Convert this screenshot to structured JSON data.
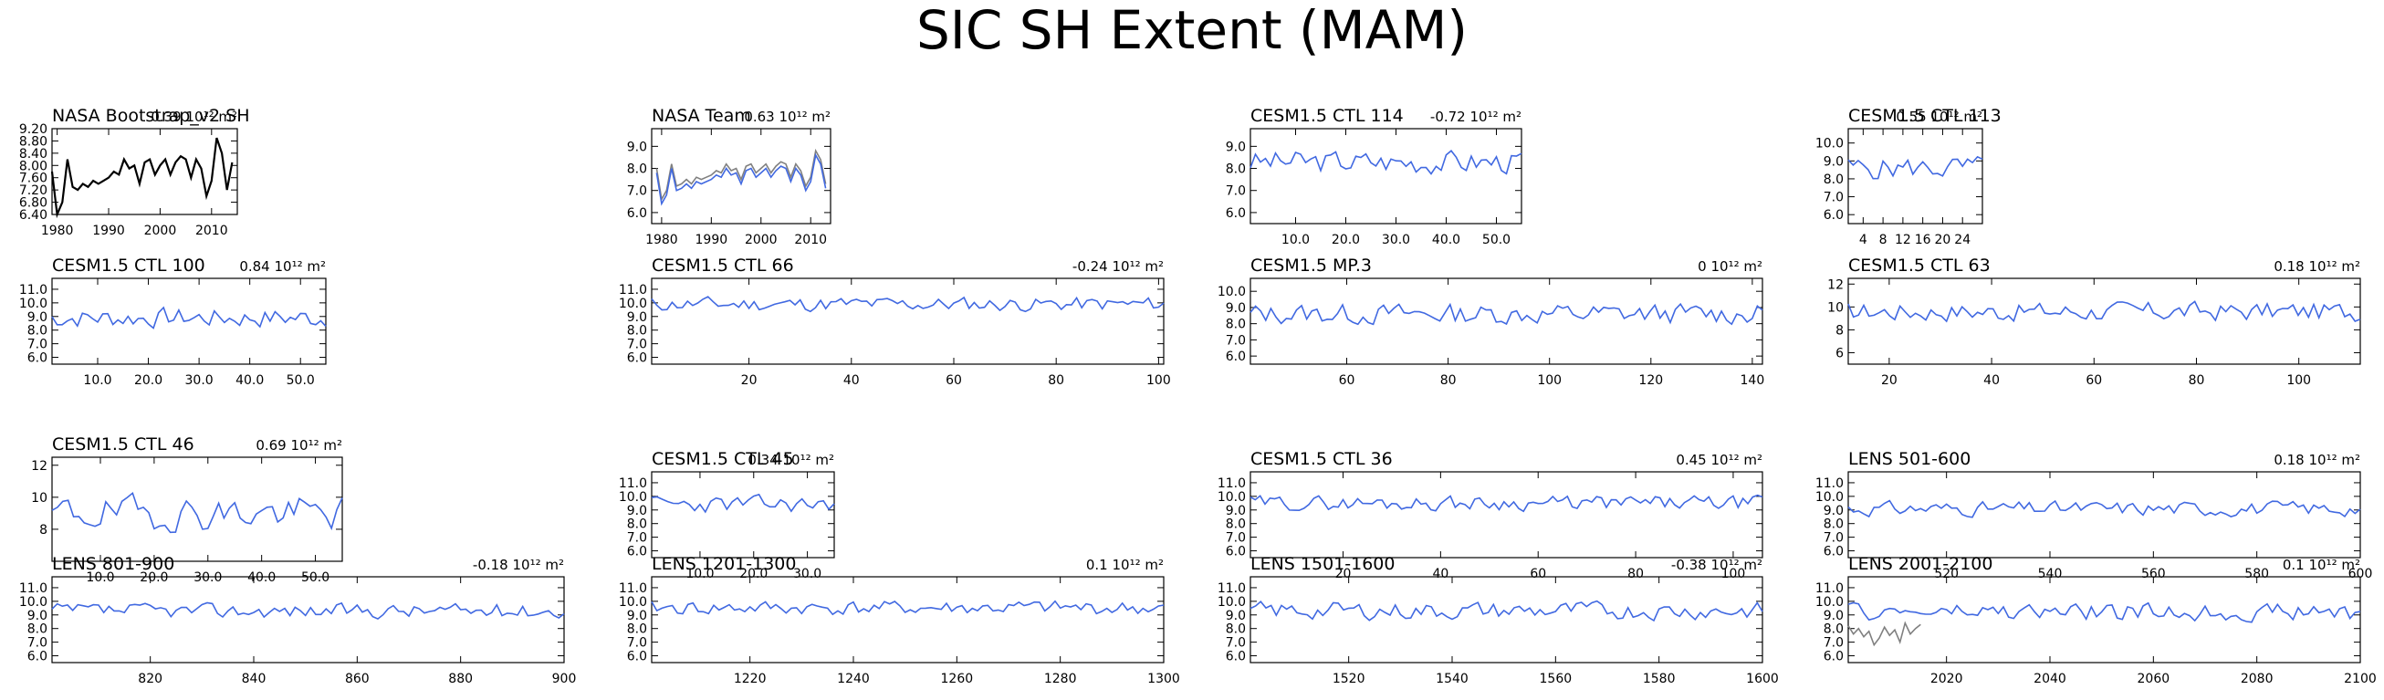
{
  "title": "SIC SH Extent (MAM)",
  "colors": {
    "model": "#4169e1",
    "obs": "#000000",
    "obs_secondary": "#808080",
    "axis": "#000000"
  },
  "chart_data": [
    {
      "type": "line",
      "title": "NASA Bootstrap_v2 SH",
      "trend": "0.39 10¹² m²",
      "xlim": [
        1979,
        2015
      ],
      "xticks": [
        1980,
        1990,
        2000,
        2010
      ],
      "xtick_labels": [
        "1980",
        "1990",
        "2000",
        "2010"
      ],
      "ylim": [
        6.4,
        9.2
      ],
      "yticks": [
        6.4,
        6.8,
        7.2,
        7.6,
        8.0,
        8.4,
        8.8,
        9.2
      ],
      "ytick_labels": [
        "6.40",
        "6.80",
        "7.20",
        "7.60",
        "8.00",
        "8.40",
        "8.80",
        "9.20"
      ],
      "series": [
        {
          "color": "#000000",
          "x": [
            1979,
            1980,
            1981,
            1982,
            1983,
            1984,
            1985,
            1986,
            1987,
            1988,
            1989,
            1990,
            1991,
            1992,
            1993,
            1994,
            1995,
            1996,
            1997,
            1998,
            1999,
            2000,
            2001,
            2002,
            2003,
            2004,
            2005,
            2006,
            2007,
            2008,
            2009,
            2010,
            2011,
            2012,
            2013,
            2014
          ],
          "y": [
            7.8,
            6.4,
            6.8,
            8.2,
            7.3,
            7.2,
            7.4,
            7.3,
            7.5,
            7.4,
            7.5,
            7.6,
            7.8,
            7.7,
            8.2,
            7.9,
            8.0,
            7.4,
            8.1,
            8.2,
            7.7,
            8.0,
            8.2,
            7.7,
            8.1,
            8.3,
            8.2,
            7.6,
            8.2,
            7.9,
            7.0,
            7.5,
            8.9,
            8.4,
            7.2,
            8.1
          ]
        }
      ]
    },
    {
      "type": "line",
      "title": "NASA Team",
      "trend": "0.63 10¹² m²",
      "xlim": [
        1978,
        2014
      ],
      "xticks": [
        1980,
        1990,
        2000,
        2010
      ],
      "xtick_labels": [
        "1980",
        "1990",
        "2000",
        "2010"
      ],
      "ylim": [
        5.5,
        9.8
      ],
      "yticks": [
        6.0,
        7.0,
        8.0,
        9.0
      ],
      "ytick_labels": [
        "6.0",
        "7.0",
        "8.0",
        "9.0"
      ],
      "series": [
        {
          "color": "#808080",
          "x": [
            1979,
            1980,
            1981,
            1982,
            1983,
            1984,
            1985,
            1986,
            1987,
            1988,
            1989,
            1990,
            1991,
            1992,
            1993,
            1994,
            1995,
            1996,
            1997,
            1998,
            1999,
            2000,
            2001,
            2002,
            2003,
            2004,
            2005,
            2006,
            2007,
            2008,
            2009,
            2010,
            2011,
            2012,
            2013
          ],
          "y": [
            8.0,
            6.6,
            7.0,
            8.2,
            7.2,
            7.3,
            7.5,
            7.3,
            7.6,
            7.5,
            7.6,
            7.7,
            7.9,
            7.8,
            8.2,
            7.9,
            8.0,
            7.5,
            8.1,
            8.2,
            7.8,
            8.0,
            8.2,
            7.8,
            8.1,
            8.3,
            8.2,
            7.6,
            8.2,
            7.9,
            7.2,
            7.6,
            8.8,
            8.4,
            7.3
          ]
        },
        {
          "color": "#4169e1",
          "x": [
            1979,
            1980,
            1981,
            1982,
            1983,
            1984,
            1985,
            1986,
            1987,
            1988,
            1989,
            1990,
            1991,
            1992,
            1993,
            1994,
            1995,
            1996,
            1997,
            1998,
            1999,
            2000,
            2001,
            2002,
            2003,
            2004,
            2005,
            2006,
            2007,
            2008,
            2009,
            2010,
            2011,
            2012,
            2013
          ],
          "y": [
            7.8,
            6.4,
            6.8,
            8.0,
            7.0,
            7.1,
            7.3,
            7.1,
            7.4,
            7.3,
            7.4,
            7.5,
            7.7,
            7.6,
            8.0,
            7.7,
            7.8,
            7.3,
            7.9,
            8.0,
            7.6,
            7.8,
            8.0,
            7.6,
            7.9,
            8.1,
            8.0,
            7.4,
            8.0,
            7.7,
            7.0,
            7.4,
            8.6,
            8.2,
            7.1
          ]
        }
      ]
    },
    {
      "type": "line",
      "title": "CESM1.5 CTL 114",
      "trend": "-0.72 10¹² m²",
      "xlim": [
        1,
        55
      ],
      "xticks": [
        10,
        20,
        30,
        40,
        50
      ],
      "xtick_labels": [
        "10.0",
        "20.0",
        "30.0",
        "40.0",
        "50.0"
      ],
      "ylim": [
        5.5,
        9.8
      ],
      "yticks": [
        6.0,
        7.0,
        8.0,
        9.0
      ],
      "ytick_labels": [
        "6.0",
        "7.0",
        "8.0",
        "9.0"
      ],
      "series": [
        {
          "color": "#4169e1",
          "count": 55,
          "base": 8.3,
          "amp": 0.5,
          "seed": 3
        }
      ]
    },
    {
      "type": "line",
      "title": "CESM1.5 CTL 113",
      "trend": "0.55 10¹² m²",
      "xlim": [
        1,
        28
      ],
      "xticks": [
        4,
        8,
        12,
        16,
        20,
        24
      ],
      "xtick_labels": [
        "4",
        "8",
        "12",
        "16",
        "20",
        "24"
      ],
      "ylim": [
        5.5,
        10.8
      ],
      "yticks": [
        6.0,
        7.0,
        8.0,
        9.0,
        10.0
      ],
      "ytick_labels": [
        "6.0",
        "7.0",
        "8.0",
        "9.0",
        "10.0"
      ],
      "series": [
        {
          "color": "#4169e1",
          "count": 28,
          "base": 8.6,
          "amp": 0.6,
          "seed": 5
        }
      ]
    },
    {
      "type": "line",
      "title": "CESM1.5 CTL 100",
      "trend": "0.84 10¹² m²",
      "xlim": [
        1,
        55
      ],
      "xticks": [
        10,
        20,
        30,
        40,
        50
      ],
      "xtick_labels": [
        "10.0",
        "20.0",
        "30.0",
        "40.0",
        "50.0"
      ],
      "ylim": [
        5.5,
        11.8
      ],
      "yticks": [
        6.0,
        7.0,
        8.0,
        9.0,
        10.0,
        11.0
      ],
      "ytick_labels": [
        "6.0",
        "7.0",
        "8.0",
        "9.0",
        "10.0",
        "11.0"
      ],
      "series": [
        {
          "color": "#4169e1",
          "count": 55,
          "base": 8.9,
          "amp": 0.7,
          "seed": 7
        }
      ]
    },
    {
      "type": "line",
      "title": "CESM1.5 CTL 66",
      "trend": "-0.24 10¹² m²",
      "xlim": [
        1,
        101
      ],
      "xticks": [
        20,
        40,
        60,
        80,
        100
      ],
      "xtick_labels": [
        "20",
        "40",
        "60",
        "80",
        "100"
      ],
      "ylim": [
        5.5,
        11.8
      ],
      "yticks": [
        6.0,
        7.0,
        8.0,
        9.0,
        10.0,
        11.0
      ],
      "ytick_labels": [
        "6.0",
        "7.0",
        "8.0",
        "9.0",
        "10.0",
        "11.0"
      ],
      "series": [
        {
          "color": "#4169e1",
          "count": 101,
          "base": 9.9,
          "amp": 0.5,
          "seed": 11
        }
      ]
    },
    {
      "type": "line",
      "title": "CESM1.5 MP.3",
      "trend": "0 10¹² m²",
      "xlim": [
        41,
        142
      ],
      "xticks": [
        60,
        80,
        100,
        120,
        140
      ],
      "xtick_labels": [
        "60",
        "80",
        "100",
        "120",
        "140"
      ],
      "ylim": [
        5.5,
        10.8
      ],
      "yticks": [
        6.0,
        7.0,
        8.0,
        9.0,
        10.0
      ],
      "ytick_labels": [
        "6.0",
        "7.0",
        "8.0",
        "9.0",
        "10.0"
      ],
      "series": [
        {
          "color": "#4169e1",
          "count": 101,
          "base": 8.6,
          "amp": 0.6,
          "seed": 13
        }
      ]
    },
    {
      "type": "line",
      "title": "CESM1.5 CTL 63",
      "trend": "0.18 10¹² m²",
      "xlim": [
        12,
        112
      ],
      "xticks": [
        20,
        40,
        60,
        80,
        100
      ],
      "xtick_labels": [
        "20",
        "40",
        "60",
        "80",
        "100"
      ],
      "ylim": [
        5,
        12.5
      ],
      "yticks": [
        6,
        8,
        10,
        12
      ],
      "ytick_labels": [
        "6",
        "8",
        "10",
        "12"
      ],
      "series": [
        {
          "color": "#4169e1",
          "count": 100,
          "base": 9.6,
          "amp": 0.8,
          "seed": 17
        }
      ]
    },
    {
      "type": "line",
      "title": "CESM1.5 CTL 46",
      "trend": "0.69 10¹² m²",
      "xlim": [
        1,
        55
      ],
      "xticks": [
        10,
        20,
        30,
        40,
        50
      ],
      "xtick_labels": [
        "10.0",
        "20.0",
        "30.0",
        "40.0",
        "50.0"
      ],
      "ylim": [
        6,
        12.5
      ],
      "yticks": [
        8,
        10,
        12
      ],
      "ytick_labels": [
        "8",
        "10",
        "12"
      ],
      "series": [
        {
          "color": "#4169e1",
          "count": 55,
          "base": 9.0,
          "amp": 1.0,
          "seed": 19
        }
      ]
    },
    {
      "type": "line",
      "title": "CESM1.5 CTL 45",
      "trend": "0.34 10¹² m²",
      "xlim": [
        1,
        35
      ],
      "xticks": [
        10,
        20,
        30
      ],
      "xtick_labels": [
        "10.0",
        "20.0",
        "30.0"
      ],
      "ylim": [
        5.5,
        11.8
      ],
      "yticks": [
        6.0,
        7.0,
        8.0,
        9.0,
        10.0,
        11.0
      ],
      "ytick_labels": [
        "6.0",
        "7.0",
        "8.0",
        "9.0",
        "10.0",
        "11.0"
      ],
      "series": [
        {
          "color": "#4169e1",
          "count": 35,
          "base": 9.4,
          "amp": 0.6,
          "seed": 23
        }
      ]
    },
    {
      "type": "line",
      "title": "CESM1.5 CTL 36",
      "trend": "0.45 10¹² m²",
      "xlim": [
        1,
        106
      ],
      "xticks": [
        20,
        40,
        60,
        80,
        100
      ],
      "xtick_labels": [
        "20",
        "40",
        "60",
        "80",
        "100"
      ],
      "ylim": [
        5.5,
        11.8
      ],
      "yticks": [
        6.0,
        7.0,
        8.0,
        9.0,
        10.0,
        11.0
      ],
      "ytick_labels": [
        "6.0",
        "7.0",
        "8.0",
        "9.0",
        "10.0",
        "11.0"
      ],
      "series": [
        {
          "color": "#4169e1",
          "count": 106,
          "base": 9.5,
          "amp": 0.5,
          "seed": 29
        }
      ]
    },
    {
      "type": "line",
      "title": "LENS 501-600",
      "trend": "0.18 10¹² m²",
      "xlim": [
        501,
        600
      ],
      "xticks": [
        520,
        540,
        560,
        580,
        600
      ],
      "xtick_labels": [
        "520",
        "540",
        "560",
        "580",
        "600"
      ],
      "ylim": [
        5.5,
        11.8
      ],
      "yticks": [
        6.0,
        7.0,
        8.0,
        9.0,
        10.0,
        11.0
      ],
      "ytick_labels": [
        "6.0",
        "7.0",
        "8.0",
        "9.0",
        "10.0",
        "11.0"
      ],
      "series": [
        {
          "color": "#4169e1",
          "count": 100,
          "base": 9.1,
          "amp": 0.5,
          "seed": 31
        }
      ]
    },
    {
      "type": "line",
      "title": "LENS 801-900",
      "trend": "-0.18 10¹² m²",
      "xlim": [
        801,
        900
      ],
      "xticks": [
        820,
        840,
        860,
        880,
        900
      ],
      "xtick_labels": [
        "820",
        "840",
        "860",
        "880",
        "900"
      ],
      "ylim": [
        5.5,
        11.8
      ],
      "yticks": [
        6.0,
        7.0,
        8.0,
        9.0,
        10.0,
        11.0
      ],
      "ytick_labels": [
        "6.0",
        "7.0",
        "8.0",
        "9.0",
        "10.0",
        "11.0"
      ],
      "series": [
        {
          "color": "#4169e1",
          "count": 100,
          "base": 9.3,
          "amp": 0.5,
          "seed": 37
        }
      ]
    },
    {
      "type": "line",
      "title": "LENS 1201-1300",
      "trend": "0.1 10¹² m²",
      "xlim": [
        1201,
        1300
      ],
      "xticks": [
        1220,
        1240,
        1260,
        1280,
        1300
      ],
      "xtick_labels": [
        "1220",
        "1240",
        "1260",
        "1280",
        "1300"
      ],
      "ylim": [
        5.5,
        11.8
      ],
      "yticks": [
        6.0,
        7.0,
        8.0,
        9.0,
        10.0,
        11.0
      ],
      "ytick_labels": [
        "6.0",
        "7.0",
        "8.0",
        "9.0",
        "10.0",
        "11.0"
      ],
      "series": [
        {
          "color": "#4169e1",
          "count": 100,
          "base": 9.5,
          "amp": 0.5,
          "seed": 41
        }
      ]
    },
    {
      "type": "line",
      "title": "LENS 1501-1600",
      "trend": "-0.38 10¹² m²",
      "xlim": [
        1501,
        1600
      ],
      "xticks": [
        1520,
        1540,
        1560,
        1580,
        1600
      ],
      "xtick_labels": [
        "1520",
        "1540",
        "1560",
        "1580",
        "1600"
      ],
      "ylim": [
        5.5,
        11.8
      ],
      "yticks": [
        6.0,
        7.0,
        8.0,
        9.0,
        10.0,
        11.0
      ],
      "ytick_labels": [
        "6.0",
        "7.0",
        "8.0",
        "9.0",
        "10.0",
        "11.0"
      ],
      "series": [
        {
          "color": "#4169e1",
          "count": 100,
          "base": 9.3,
          "amp": 0.6,
          "seed": 43
        }
      ]
    },
    {
      "type": "line",
      "title": "LENS 2001-2100",
      "trend": "0.1 10¹² m²",
      "xlim": [
        2001,
        2100
      ],
      "xticks": [
        2020,
        2040,
        2060,
        2080,
        2100
      ],
      "xtick_labels": [
        "2020",
        "2040",
        "2060",
        "2080",
        "2100"
      ],
      "ylim": [
        5.5,
        11.8
      ],
      "yticks": [
        6.0,
        7.0,
        8.0,
        9.0,
        10.0,
        11.0
      ],
      "ytick_labels": [
        "6.0",
        "7.0",
        "8.0",
        "9.0",
        "10.0",
        "11.0"
      ],
      "series": [
        {
          "color": "#4169e1",
          "count": 100,
          "base": 9.2,
          "amp": 0.6,
          "seed": 47
        },
        {
          "color": "#808080",
          "x": [
            2001,
            2002,
            2003,
            2004,
            2005,
            2006,
            2007,
            2008,
            2009,
            2010,
            2011,
            2012,
            2013,
            2014,
            2015
          ],
          "y": [
            8.2,
            7.6,
            8.0,
            7.4,
            7.8,
            6.8,
            7.3,
            8.1,
            7.5,
            7.9,
            7.0,
            8.4,
            7.6,
            8.0,
            8.3
          ]
        }
      ]
    }
  ]
}
